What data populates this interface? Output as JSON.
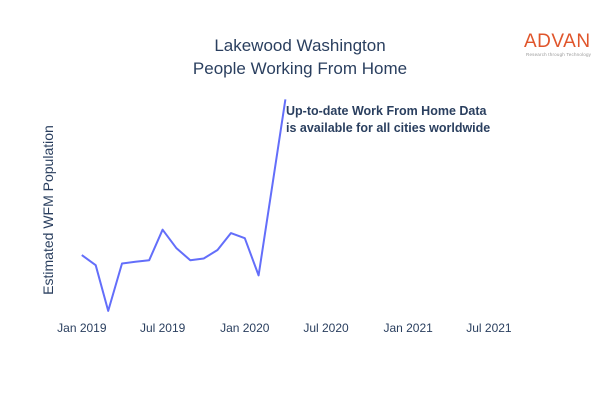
{
  "chart_data": {
    "type": "line",
    "title_line1": "Lakewood Washington",
    "title_line2": "People Working From Home",
    "xlabel": "",
    "ylabel": "Estimated WFM Population",
    "annotation_line1": "Up-to-date Work From Home Data",
    "annotation_line2": "is available for all cities worldwide",
    "logo_text": "ADVAN",
    "logo_subtext": "Research through Technology",
    "line_color": "#636efa",
    "logo_color": "#e0552b",
    "x_ticks": [
      "Jan 2019",
      "Jul 2019",
      "Jan 2020",
      "Jul 2020",
      "Jan 2021",
      "Jul 2021"
    ],
    "x_tick_dates": [
      "2019-01-01",
      "2019-07-01",
      "2020-01-01",
      "2020-07-01",
      "2021-01-01",
      "2021-07-01"
    ],
    "x_range": [
      "2018-12-01",
      "2021-10-01"
    ],
    "y_axis_tick_labels_shown": false,
    "grid": false,
    "series": [
      {
        "x": [
          "2019-01-01",
          "2019-02-01",
          "2019-03-01",
          "2019-04-01",
          "2019-05-01",
          "2019-06-01",
          "2019-07-01",
          "2019-08-01",
          "2019-09-01",
          "2019-10-01",
          "2019-11-01",
          "2019-12-01",
          "2020-01-01",
          "2020-02-01",
          "2020-03-01",
          "2020-04-01"
        ],
        "y": [
          0.36,
          0.3,
          0.03,
          0.31,
          0.32,
          0.33,
          0.51,
          0.4,
          0.33,
          0.34,
          0.39,
          0.49,
          0.46,
          0.24,
          0.74,
          1.28
        ]
      }
    ]
  }
}
